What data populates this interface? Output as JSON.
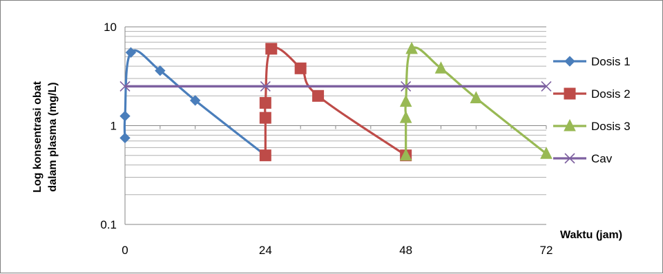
{
  "chart_data": {
    "type": "line",
    "title": "",
    "xlabel": "Waktu (jam)",
    "ylabel_line1": "Log konsentrasi obat",
    "ylabel_line2": "dalam plasma (mg/L)",
    "yscale": "log",
    "xlim": [
      0,
      72
    ],
    "ylim": [
      0.1,
      10
    ],
    "x_ticks": [
      0,
      24,
      48,
      72
    ],
    "x_tick_labels": [
      "0",
      "24",
      "48",
      "72"
    ],
    "y_ticks": [
      0.1,
      1,
      10
    ],
    "y_tick_labels": [
      "0.1",
      "1",
      "10"
    ],
    "grid": true,
    "legend_position": "right",
    "series": [
      {
        "name": "Dosis 1",
        "color": "#4a7ebb",
        "marker": "diamond",
        "points": [
          [
            0,
            0.75
          ],
          [
            0,
            1.25
          ],
          [
            1,
            5.5
          ],
          [
            6,
            3.6
          ],
          [
            12,
            1.8
          ],
          [
            24,
            0.5
          ]
        ],
        "marked_indices": [
          0,
          1,
          2,
          3,
          4
        ]
      },
      {
        "name": "Dosis 2",
        "color": "#be4b48",
        "marker": "square",
        "points": [
          [
            24,
            0.5
          ],
          [
            24,
            1.2
          ],
          [
            24,
            1.7
          ],
          [
            25,
            6.0
          ],
          [
            30,
            3.8
          ],
          [
            33,
            2.0
          ],
          [
            48,
            0.5
          ]
        ],
        "marked_indices": [
          0,
          1,
          2,
          3,
          4,
          5,
          6
        ]
      },
      {
        "name": "Dosis 3",
        "color": "#98b954",
        "marker": "triangle",
        "points": [
          [
            48,
            0.5
          ],
          [
            48,
            1.2
          ],
          [
            48,
            1.75
          ],
          [
            49,
            6.0
          ],
          [
            54,
            3.8
          ],
          [
            60,
            1.9
          ],
          [
            72,
            0.52
          ]
        ],
        "marked_indices": [
          0,
          1,
          2,
          3,
          4,
          5,
          6
        ]
      },
      {
        "name": "Cav",
        "color": "#7d60a0",
        "marker": "x",
        "points": [
          [
            0,
            2.5
          ],
          [
            24,
            2.5
          ],
          [
            48,
            2.5
          ],
          [
            72,
            2.5
          ]
        ],
        "marked_indices": [
          0,
          1,
          2,
          3
        ]
      }
    ]
  }
}
